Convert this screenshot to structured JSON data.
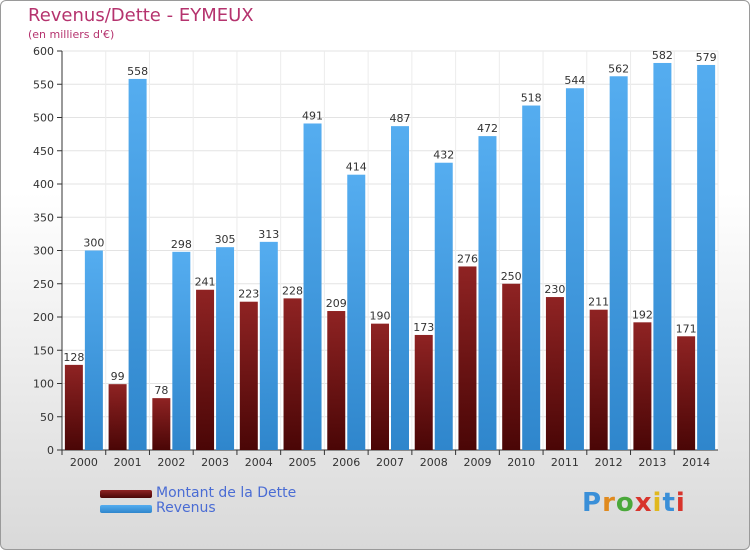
{
  "header": {
    "title": "Revenus/Dette - EYMEUX",
    "subtitle": "(en milliers d'€)"
  },
  "legend": {
    "items": [
      {
        "label": "Montant de la Dette",
        "color": "#7a1515"
      },
      {
        "label": "Revenus",
        "color": "#3f9be0"
      }
    ]
  },
  "logo": {
    "text": "Proxiti"
  },
  "chart_data": {
    "type": "bar",
    "title": "Revenus/Dette - EYMEUX",
    "subtitle": "(en milliers d'€)",
    "categories": [
      "2000",
      "2001",
      "2002",
      "2003",
      "2004",
      "2005",
      "2006",
      "2007",
      "2008",
      "2009",
      "2010",
      "2011",
      "2012",
      "2013",
      "2014"
    ],
    "series": [
      {
        "name": "Montant de la Dette",
        "color": "#7a1515",
        "values": [
          128,
          99,
          78,
          241,
          223,
          228,
          209,
          190,
          173,
          276,
          250,
          230,
          211,
          192,
          171
        ]
      },
      {
        "name": "Revenus",
        "color": "#3f9be0",
        "values": [
          300,
          558,
          298,
          305,
          313,
          491,
          414,
          487,
          432,
          472,
          518,
          544,
          562,
          582,
          579
        ]
      }
    ],
    "ylim": [
      0,
      600
    ],
    "yticks": [
      0,
      50,
      100,
      150,
      200,
      250,
      300,
      350,
      400,
      450,
      500,
      550,
      600
    ],
    "grid": true,
    "legend": "bottom-left"
  }
}
